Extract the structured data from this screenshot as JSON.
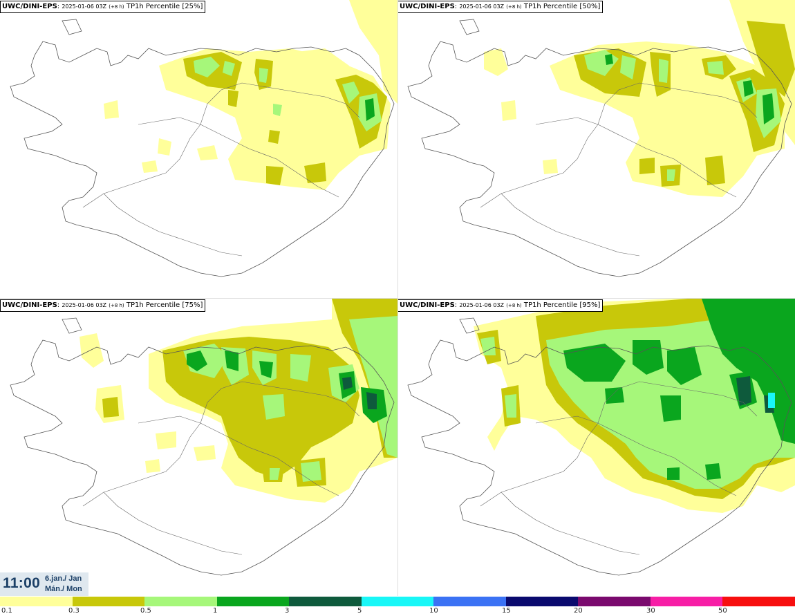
{
  "panels": [
    {
      "model": "UWC/DINI-EPS",
      "run": "2025-01-06 03Z",
      "lead": "(+8 h)",
      "label": "TP1h Percentile [25%]"
    },
    {
      "model": "UWC/DINI-EPS",
      "run": "2025-01-06 03Z",
      "lead": "(+8 h)",
      "label": "TP1h Percentile [50%]"
    },
    {
      "model": "UWC/DINI-EPS",
      "run": "2025-01-06 03Z",
      "lead": "(+8 h)",
      "label": "TP1h Percentile [75%]"
    },
    {
      "model": "UWC/DINI-EPS",
      "run": "2025-01-06 03Z",
      "lead": "(+8 h)",
      "label": "TP1h Percentile [95%]"
    }
  ],
  "valid_time": {
    "time": "11:00",
    "date": "6.jan./ Jan",
    "day": "Mán./ Mon"
  },
  "legend": {
    "colors": [
      "#ffff9a",
      "#c8c80a",
      "#a6f77a",
      "#0aa61e",
      "#0e5a3c",
      "#19f7f7",
      "#3b72f4",
      "#0a0a6e",
      "#7a0a6e",
      "#f71ea6",
      "#f70f0f"
    ],
    "labels": [
      "0.1",
      "0.3",
      "0.5",
      "1",
      "3",
      "5",
      "10",
      "15",
      "20",
      "30",
      "50"
    ]
  },
  "colors": {
    "map_line": "#555555",
    "title_border": "#000000",
    "time_text": "#1b3f66",
    "time_bg": "#dfe8ef"
  }
}
